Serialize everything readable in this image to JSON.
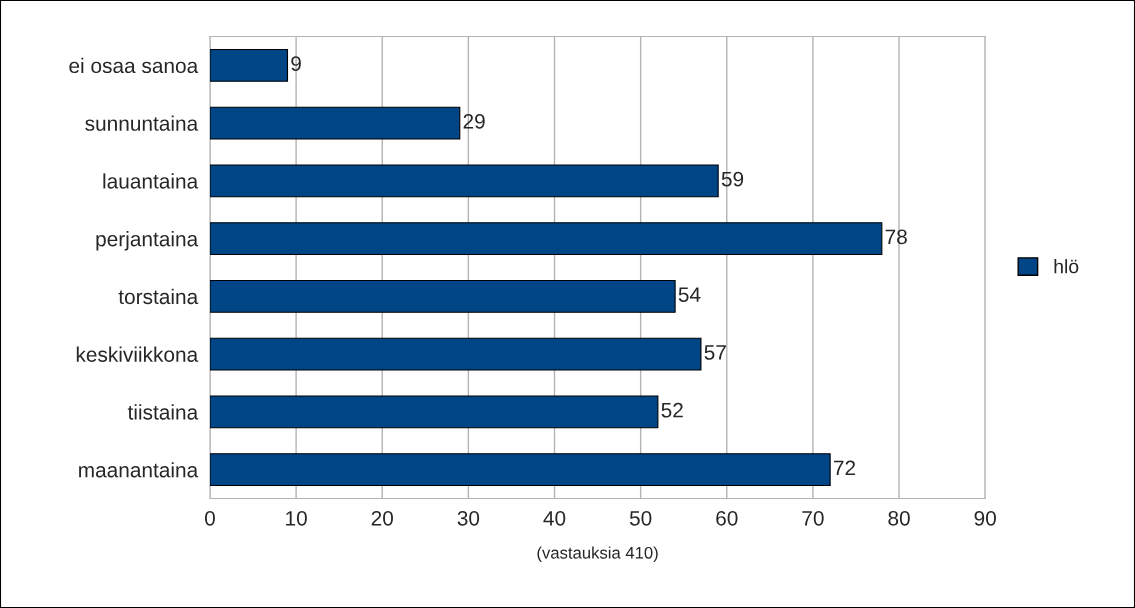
{
  "chart_data": {
    "type": "bar",
    "orientation": "horizontal",
    "xlabel": "(vastauksia 410)",
    "categories": [
      "ei osaa sanoa",
      "sunnuntaina",
      "lauantaina",
      "perjantaina",
      "torstaina",
      "keskiviikkona",
      "tiistaina",
      "maanantaina"
    ],
    "series": [
      {
        "name": "hlö",
        "color": "#004586",
        "values": [
          9,
          29,
          59,
          78,
          54,
          57,
          52,
          72
        ]
      }
    ],
    "xlim": [
      0,
      90
    ],
    "xticks": [
      0,
      10,
      20,
      30,
      40,
      50,
      60,
      70,
      80,
      90
    ],
    "grid": "x",
    "legend": "right",
    "data_labels": true
  }
}
